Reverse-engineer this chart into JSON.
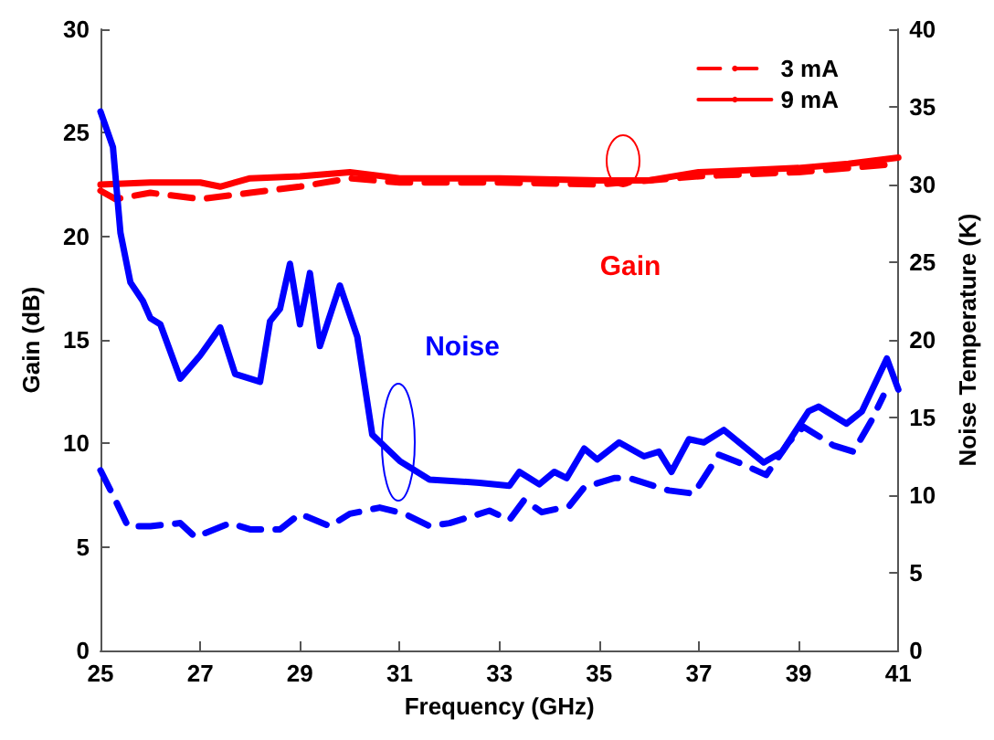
{
  "chart_data": {
    "type": "line",
    "xlabel": "Frequency (GHz)",
    "ylabel": "Gain (dB)",
    "y2label": "Noise Temperature (K)",
    "xlim": [
      25,
      41
    ],
    "xticks": [
      25,
      27,
      29,
      31,
      33,
      35,
      37,
      39,
      41
    ],
    "ylim": [
      0,
      30
    ],
    "yticks": [
      0,
      5,
      10,
      15,
      20,
      25,
      30
    ],
    "y2lim": [
      0,
      40
    ],
    "y2ticks": [
      0,
      5,
      10,
      15,
      20,
      25,
      30,
      35,
      40
    ],
    "grid": false,
    "legend": "top right",
    "marker": "none",
    "series": [
      {
        "name": "3 mA",
        "color": "#ff0000",
        "line_style": "dashed",
        "x": [
          25,
          25.3,
          26,
          27,
          28,
          29,
          30,
          31,
          33,
          35,
          37,
          39,
          41
        ],
        "values": [
          22.2,
          21.8,
          22.1,
          21.8,
          22.1,
          22.4,
          22.8,
          22.6,
          22.6,
          22.5,
          22.9,
          23.1,
          23.5
        ]
      },
      {
        "name": "9 mA",
        "color": "#ff0000",
        "line_style": "solid",
        "x": [
          25,
          26,
          27,
          27.4,
          28,
          29,
          30,
          31,
          33,
          35,
          36,
          37,
          38,
          39,
          40,
          41
        ],
        "values": [
          22.5,
          22.6,
          22.6,
          22.4,
          22.8,
          22.9,
          23.1,
          22.8,
          22.8,
          22.7,
          22.7,
          23.1,
          23.2,
          23.3,
          23.5,
          23.8
        ]
      },
      {
        "color": "#0000ff",
        "line_style": "dashed",
        "axis": "y2",
        "x": [
          25,
          25.25,
          25.55,
          26,
          26.6,
          26.9,
          27.6,
          28,
          28.6,
          29,
          29.6,
          30,
          30.6,
          31.1,
          31.6,
          32,
          32.8,
          33.2,
          33.5,
          33.85,
          34.4,
          34.7,
          35.3,
          35.6,
          36.4,
          36.9,
          37.4,
          37.8,
          38.35,
          38.8,
          39.1,
          39.7,
          40.1,
          40.46,
          40.7
        ],
        "values": [
          11.6,
          10.0,
          8.0,
          8.0,
          8.2,
          7.3,
          8.2,
          7.8,
          7.8,
          8.8,
          8.0,
          8.8,
          9.2,
          8.8,
          8.0,
          8.2,
          9.0,
          8.4,
          9.7,
          8.9,
          9.3,
          10.5,
          11.1,
          11.1,
          10.3,
          10.1,
          12.6,
          12.1,
          11.3,
          13.4,
          14.4,
          13.2,
          12.8,
          14.8,
          16.4
        ]
      },
      {
        "color": "#0000ff",
        "line_style": "solid",
        "axis": "y2",
        "x": [
          25,
          25.25,
          25.4,
          25.6,
          25.85,
          26,
          26.2,
          26.6,
          27,
          27.4,
          27.7,
          28.2,
          28.4,
          28.6,
          28.8,
          29,
          29.2,
          29.4,
          29.8,
          30.15,
          30.45,
          31,
          31.6,
          32.6,
          33.2,
          33.4,
          33.8,
          34.1,
          34.35,
          34.7,
          34.96,
          35.4,
          35.9,
          36.2,
          36.45,
          36.8,
          37.1,
          37.5,
          38.3,
          38.67,
          39.2,
          39.4,
          39.96,
          40.27,
          40.77,
          41
        ],
        "values": [
          34.7,
          32.4,
          26.9,
          23.7,
          22.5,
          21.4,
          21.0,
          17.5,
          19.0,
          20.8,
          17.8,
          17.3,
          21.2,
          22.0,
          24.9,
          21.0,
          24.3,
          19.6,
          23.5,
          20.2,
          13.9,
          12.2,
          11.0,
          10.8,
          10.6,
          11.5,
          10.7,
          11.5,
          11.1,
          13.0,
          12.3,
          13.4,
          12.5,
          12.8,
          11.5,
          13.6,
          13.4,
          14.2,
          12.1,
          12.8,
          15.4,
          15.7,
          14.6,
          15.4,
          18.8,
          16.8
        ]
      }
    ],
    "annotations": [
      "Gain",
      "Noise"
    ]
  }
}
